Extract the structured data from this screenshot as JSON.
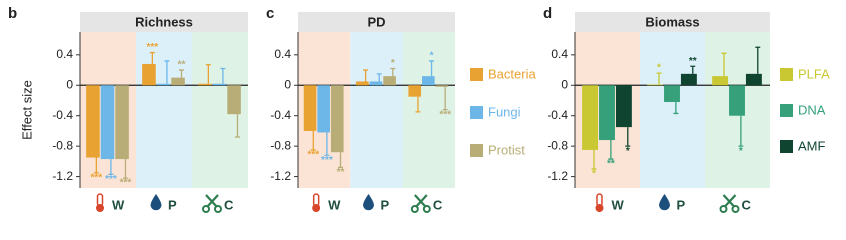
{
  "chart_data": [
    {
      "type": "bar",
      "label": "b",
      "title": "Richness",
      "ylabel": "Effect size",
      "categories": [
        "W",
        "P",
        "C"
      ],
      "ylim": [
        -1.35,
        0.7
      ],
      "yticks": [
        0.4,
        0,
        -0.4,
        -0.8,
        -1.2
      ],
      "series": [
        {
          "color": "#e8a232",
          "values": [
            -0.95,
            0.28,
            0.02
          ],
          "errors": [
            0.2,
            0.15,
            0.25
          ],
          "significance": [
            "***",
            "***",
            null
          ]
        },
        {
          "color": "#6cb6e8",
          "values": [
            -0.97,
            0.02,
            0.02
          ],
          "errors": [
            0.2,
            0.3,
            0.2
          ],
          "significance": [
            "***",
            null,
            null
          ]
        },
        {
          "color": "#b8ad76",
          "values": [
            -0.97,
            0.1,
            -0.38
          ],
          "errors": [
            0.25,
            0.1,
            0.3
          ],
          "significance": [
            "***",
            "**",
            null
          ]
        }
      ]
    },
    {
      "type": "bar",
      "label": "c",
      "title": "PD",
      "categories": [
        "W",
        "P",
        "C"
      ],
      "ylim": [
        -1.35,
        0.7
      ],
      "yticks": [
        0.4,
        0,
        -0.4,
        -0.8,
        -1.2
      ],
      "legend": "right",
      "series": [
        {
          "name": "Bacteria",
          "color": "#e8a232",
          "values": [
            -0.6,
            0.05,
            -0.15
          ],
          "errors": [
            0.25,
            0.15,
            0.2
          ],
          "significance": [
            "***",
            null,
            null
          ]
        },
        {
          "name": "Fungi",
          "color": "#6cb6e8",
          "values": [
            -0.62,
            0.05,
            0.12
          ],
          "errors": [
            0.3,
            0.1,
            0.2
          ],
          "significance": [
            "***",
            null,
            "*"
          ]
        },
        {
          "name": "Protist",
          "color": "#b8ad76",
          "values": [
            -0.88,
            0.12,
            -0.02
          ],
          "errors": [
            0.2,
            0.1,
            0.3
          ],
          "significance": [
            "**",
            "*",
            "***"
          ]
        }
      ]
    },
    {
      "type": "bar",
      "label": "d",
      "title": "Biomass",
      "categories": [
        "W",
        "P",
        "C"
      ],
      "ylim": [
        -1.35,
        0.7
      ],
      "yticks": [
        0.4,
        0,
        -0.4,
        -0.8,
        -1.2
      ],
      "legend": "right",
      "series": [
        {
          "name": "PLFA",
          "color": "#c9c832",
          "values": [
            -0.85,
            0.01,
            0.12
          ],
          "errors": [
            0.25,
            0.15,
            0.3
          ],
          "significance": [
            "*",
            "*",
            null
          ]
        },
        {
          "name": "DNA",
          "color": "#35a07a",
          "values": [
            -0.72,
            -0.22,
            -0.4
          ],
          "errors": [
            0.25,
            0.15,
            0.4
          ],
          "significance": [
            "**",
            null,
            "*"
          ]
        },
        {
          "name": "AMF",
          "color": "#0f4530",
          "values": [
            -0.55,
            0.15,
            0.15
          ],
          "errors": [
            0.25,
            0.1,
            0.35
          ],
          "significance": [
            "*",
            "**",
            null
          ]
        }
      ]
    }
  ]
}
